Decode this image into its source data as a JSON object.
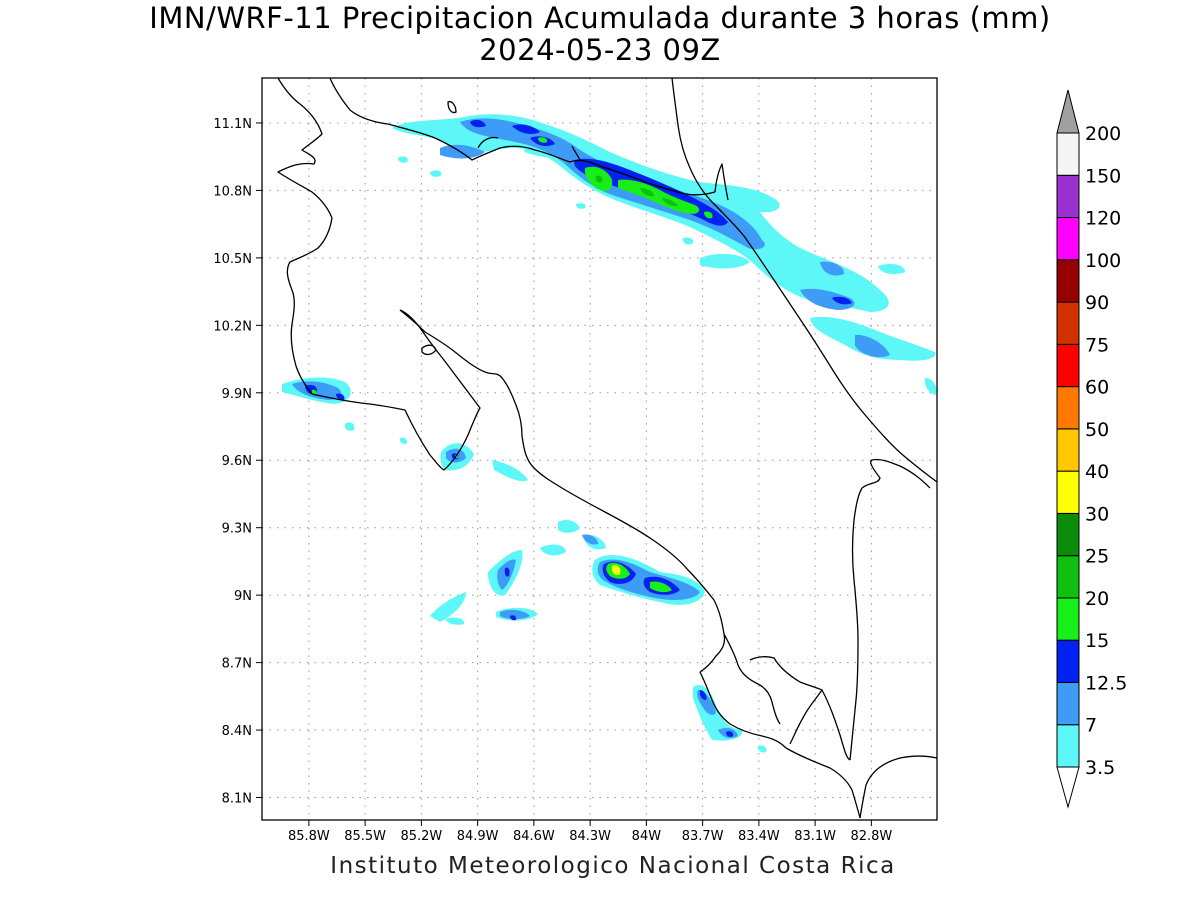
{
  "title": "IMN/WRF-11 Precipitacion Acumulada durante 3 horas (mm)",
  "subtitle": "2024-05-23 09Z",
  "footer": "Instituto Meteorologico Nacional Costa Rica",
  "map": {
    "lon_range": [
      -86.05,
      -82.45
    ],
    "lat_range": [
      8.0,
      11.3
    ],
    "lon_ticks": [
      {
        "value": -85.8,
        "label": "85.8W"
      },
      {
        "value": -85.5,
        "label": "85.5W"
      },
      {
        "value": -85.2,
        "label": "85.2W"
      },
      {
        "value": -84.9,
        "label": "84.9W"
      },
      {
        "value": -84.6,
        "label": "84.6W"
      },
      {
        "value": -84.3,
        "label": "84.3W"
      },
      {
        "value": -84.0,
        "label": "84W"
      },
      {
        "value": -83.7,
        "label": "83.7W"
      },
      {
        "value": -83.4,
        "label": "83.4W"
      },
      {
        "value": -83.1,
        "label": "83.1W"
      },
      {
        "value": -82.8,
        "label": "82.8W"
      }
    ],
    "lat_ticks": [
      {
        "value": 11.1,
        "label": "11.1N"
      },
      {
        "value": 10.8,
        "label": "10.8N"
      },
      {
        "value": 10.5,
        "label": "10.5N"
      },
      {
        "value": 10.2,
        "label": "10.2N"
      },
      {
        "value": 9.9,
        "label": "9.9N"
      },
      {
        "value": 9.6,
        "label": "9.6N"
      },
      {
        "value": 9.3,
        "label": "9.3N"
      },
      {
        "value": 9.0,
        "label": "9N"
      },
      {
        "value": 8.7,
        "label": "8.7N"
      },
      {
        "value": 8.4,
        "label": "8.4N"
      },
      {
        "value": 8.1,
        "label": "8.1N"
      }
    ],
    "grid": true
  },
  "colorbar": {
    "labels": [
      "3.5",
      "7",
      "12.5",
      "15",
      "20",
      "25",
      "30",
      "40",
      "50",
      "60",
      "75",
      "90",
      "100",
      "120",
      "150",
      "200"
    ],
    "colors": [
      "#ffffff",
      "#5ef7f7",
      "#3e9cf7",
      "#0022f0",
      "#18ee18",
      "#10c010",
      "#0a8c0a",
      "#ffff00",
      "#ffc800",
      "#ff7800",
      "#ff0000",
      "#d23200",
      "#960000",
      "#ff00ff",
      "#9b30d0",
      "#f5f5f5",
      "#a0a0a0"
    ]
  }
}
